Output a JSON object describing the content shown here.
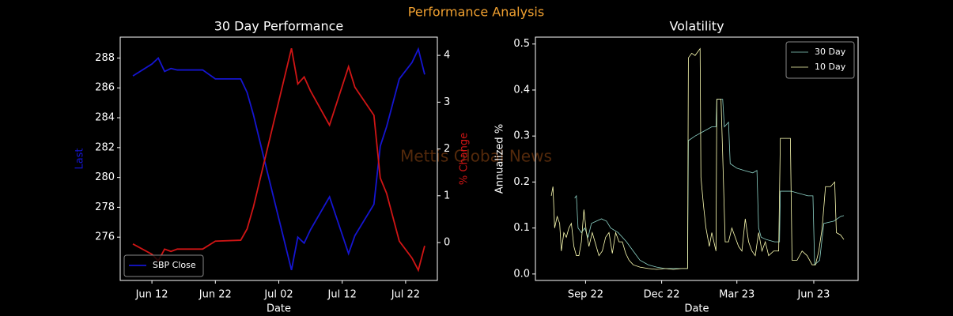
{
  "title": "Performance Analysis",
  "watermark": "Mettis Global News",
  "chart_data": [
    {
      "type": "line",
      "title": "30 Day Performance",
      "xlabel": "Date",
      "ylabel": "Last",
      "y2label": "% Change",
      "x": [
        "06-09",
        "06-12",
        "06-13",
        "06-14",
        "06-15",
        "06-16",
        "06-20",
        "06-22",
        "06-26",
        "06-27",
        "06-28",
        "06-30",
        "07-04",
        "07-05",
        "07-06",
        "07-07",
        "07-10",
        "07-13",
        "07-14",
        "07-17",
        "07-18",
        "07-19",
        "07-21",
        "07-23",
        "07-24",
        "07-25"
      ],
      "series": [
        {
          "name": "SBP Close",
          "color": "#1515d0",
          "values": [
            286.8,
            287.6,
            288.0,
            287.1,
            287.3,
            287.2,
            287.2,
            286.6,
            286.6,
            285.7,
            284.2,
            280.7,
            273.8,
            276.0,
            275.6,
            276.5,
            278.7,
            274.9,
            276.1,
            278.2,
            282.1,
            283.4,
            286.6,
            287.7,
            288.6,
            286.9
          ]
        },
        {
          "color": "#d01515",
          "axis": "y2",
          "values": [
            -0.03,
            -0.25,
            -0.39,
            -0.14,
            -0.19,
            -0.14,
            -0.14,
            0.03,
            0.05,
            0.29,
            0.76,
            1.89,
            4.15,
            3.39,
            3.54,
            3.24,
            2.51,
            3.76,
            3.32,
            2.72,
            1.38,
            1.05,
            0.03,
            -0.33,
            -0.59,
            -0.07
          ]
        }
      ],
      "xlim": [
        "06-07",
        "07-27"
      ],
      "xticks": [
        {
          "value": "06-12",
          "label": "Jun 12"
        },
        {
          "value": "06-22",
          "label": "Jun 22"
        },
        {
          "value": "07-02",
          "label": "Jul 02"
        },
        {
          "value": "07-12",
          "label": "Jul 12"
        },
        {
          "value": "07-22",
          "label": "Jul 22"
        }
      ],
      "ylim": [
        273.1,
        289.4
      ],
      "yticks": [
        276,
        278,
        280,
        282,
        284,
        286,
        288
      ],
      "y2lim": [
        -0.81,
        4.39
      ],
      "y2ticks": [
        0,
        1,
        2,
        3,
        4
      ],
      "legend": "lower left",
      "line_width": 1.8
    },
    {
      "type": "line",
      "title": "Volatility",
      "xlabel": "Date",
      "ylabel": "Annualized %",
      "series": [
        {
          "name": "30 Day",
          "color": "#8dd3c7",
          "x": [
            "2022-08-19",
            "2022-08-21",
            "2022-08-23",
            "2022-08-27",
            "2022-08-31",
            "2022-09-04",
            "2022-09-08",
            "2022-09-14",
            "2022-09-20",
            "2022-09-26",
            "2022-10-01",
            "2022-10-10",
            "2022-10-20",
            "2022-10-28",
            "2022-11-05",
            "2022-11-15",
            "2022-11-25",
            "2022-12-05",
            "2022-12-15",
            "2022-12-25",
            "2023-01-01",
            "2023-01-02",
            "2023-01-10",
            "2023-01-20",
            "2023-01-30",
            "2023-02-04",
            "2023-02-05",
            "2023-02-12",
            "2023-02-14",
            "2023-02-19",
            "2023-02-21",
            "2023-03-01",
            "2023-03-10",
            "2023-03-20",
            "2023-03-25",
            "2023-03-27",
            "2023-03-30",
            "2023-04-05",
            "2023-04-15",
            "2023-04-21",
            "2023-04-22",
            "2023-05-05",
            "2023-05-15",
            "2023-05-25",
            "2023-05-31",
            "2023-06-02",
            "2023-06-08",
            "2023-06-13",
            "2023-06-25",
            "2023-07-03",
            "2023-07-07"
          ],
          "values": [
            0.165,
            0.17,
            0.1,
            0.09,
            0.1,
            0.08,
            0.11,
            0.115,
            0.12,
            0.115,
            0.1,
            0.09,
            0.07,
            0.05,
            0.03,
            0.02,
            0.015,
            0.012,
            0.012,
            0.012,
            0.012,
            0.29,
            0.3,
            0.31,
            0.32,
            0.32,
            0.38,
            0.38,
            0.32,
            0.33,
            0.24,
            0.23,
            0.225,
            0.22,
            0.225,
            0.1,
            0.08,
            0.075,
            0.07,
            0.07,
            0.18,
            0.18,
            0.175,
            0.17,
            0.17,
            0.02,
            0.03,
            0.11,
            0.115,
            0.125,
            0.127
          ]
        },
        {
          "name": "10 Day",
          "color": "#feffb3",
          "x": [
            "2022-07-22",
            "2022-07-24",
            "2022-07-26",
            "2022-07-29",
            "2022-08-01",
            "2022-08-03",
            "2022-08-06",
            "2022-08-09",
            "2022-08-12",
            "2022-08-15",
            "2022-08-18",
            "2022-08-21",
            "2022-08-24",
            "2022-08-27",
            "2022-08-30",
            "2022-09-02",
            "2022-09-05",
            "2022-09-09",
            "2022-09-13",
            "2022-09-17",
            "2022-09-21",
            "2022-09-25",
            "2022-09-29",
            "2022-10-03",
            "2022-10-07",
            "2022-10-11",
            "2022-10-15",
            "2022-10-19",
            "2022-10-23",
            "2022-10-28",
            "2022-11-05",
            "2022-11-15",
            "2022-11-25",
            "2022-12-05",
            "2022-12-15",
            "2022-12-25",
            "2023-01-01",
            "2023-01-02",
            "2023-01-06",
            "2023-01-10",
            "2023-01-14",
            "2023-01-16",
            "2023-01-17",
            "2023-01-20",
            "2023-01-23",
            "2023-01-27",
            "2023-01-30",
            "2023-02-04",
            "2023-02-05",
            "2023-02-10",
            "2023-02-12",
            "2023-02-15",
            "2023-02-19",
            "2023-02-23",
            "2023-02-27",
            "2023-03-03",
            "2023-03-07",
            "2023-03-11",
            "2023-03-15",
            "2023-03-19",
            "2023-03-23",
            "2023-03-27",
            "2023-03-31",
            "2023-04-04",
            "2023-04-08",
            "2023-04-14",
            "2023-04-20",
            "2023-04-22",
            "2023-04-28",
            "2023-05-04",
            "2023-05-06",
            "2023-05-12",
            "2023-05-18",
            "2023-05-24",
            "2023-05-30",
            "2023-06-03",
            "2023-06-07",
            "2023-06-11",
            "2023-06-15",
            "2023-06-21",
            "2023-06-26",
            "2023-06-28",
            "2023-07-03",
            "2023-07-07"
          ],
          "values": [
            0.17,
            0.19,
            0.1,
            0.125,
            0.11,
            0.05,
            0.09,
            0.08,
            0.1,
            0.11,
            0.06,
            0.04,
            0.04,
            0.07,
            0.14,
            0.09,
            0.06,
            0.09,
            0.065,
            0.04,
            0.05,
            0.08,
            0.09,
            0.045,
            0.09,
            0.07,
            0.07,
            0.045,
            0.03,
            0.02,
            0.015,
            0.012,
            0.01,
            0.012,
            0.01,
            0.012,
            0.012,
            0.47,
            0.48,
            0.475,
            0.485,
            0.49,
            0.21,
            0.15,
            0.1,
            0.06,
            0.09,
            0.05,
            0.38,
            0.38,
            0.26,
            0.07,
            0.07,
            0.1,
            0.08,
            0.06,
            0.05,
            0.12,
            0.07,
            0.05,
            0.04,
            0.09,
            0.05,
            0.07,
            0.04,
            0.05,
            0.05,
            0.295,
            0.295,
            0.295,
            0.03,
            0.03,
            0.05,
            0.04,
            0.02,
            0.02,
            0.05,
            0.1,
            0.19,
            0.19,
            0.2,
            0.09,
            0.085,
            0.075
          ]
        }
      ],
      "xlim": [
        "2022-07-03",
        "2023-07-24"
      ],
      "xticks": [
        {
          "value": "2022-09",
          "label": "Sep 22"
        },
        {
          "value": "2022-12",
          "label": "Dec 22"
        },
        {
          "value": "2023-03",
          "label": "Mar 23"
        },
        {
          "value": "2023-06",
          "label": "Jun 23"
        }
      ],
      "ylim": [
        -0.014,
        0.515
      ],
      "yticks": [
        {
          "value": 0,
          "label": "0.0"
        },
        0.1,
        0.2,
        0.3,
        0.4,
        0.5
      ],
      "legend": "upper right",
      "line_width": 0.8
    }
  ]
}
